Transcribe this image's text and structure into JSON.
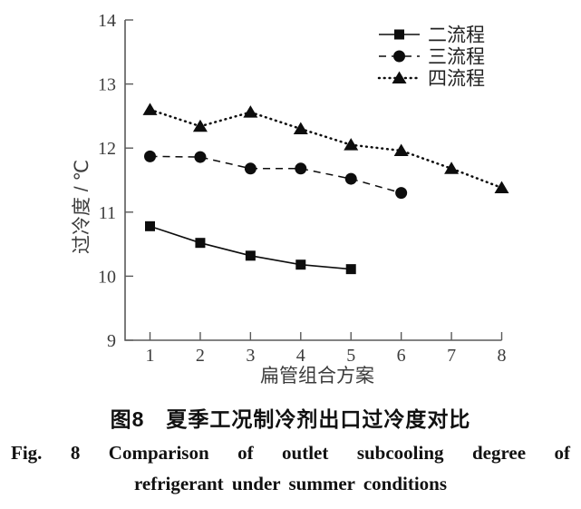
{
  "figure": {
    "caption_zh": "图8　夏季工况制冷剂出口过冷度对比",
    "caption_en_line1": "Fig. 8 Comparison of outlet subcooling degree of",
    "caption_en_line2": "refrigerant under summer conditions"
  },
  "chart_data": {
    "type": "line",
    "title": "",
    "xlabel": "扁管组合方案",
    "ylabel": "过冷度 / ℃",
    "xlim": [
      0.5,
      8.2
    ],
    "ylim": [
      9,
      14
    ],
    "x_ticks": [
      1,
      2,
      3,
      4,
      5,
      6,
      7,
      8
    ],
    "y_ticks": [
      9,
      10,
      11,
      12,
      13,
      14
    ],
    "grid": "off",
    "legend_position": "top-right-inside",
    "series": [
      {
        "name": "二流程",
        "marker": "square",
        "line": "solid",
        "x": [
          1,
          2,
          3,
          4,
          5
        ],
        "values": [
          10.78,
          10.52,
          10.32,
          10.18,
          10.11
        ]
      },
      {
        "name": "三流程",
        "marker": "circle",
        "line": "dashed",
        "x": [
          1,
          2,
          3,
          4,
          5,
          6
        ],
        "values": [
          11.87,
          11.86,
          11.68,
          11.68,
          11.52,
          11.3
        ]
      },
      {
        "name": "四流程",
        "marker": "triangle",
        "line": "dotted",
        "x": [
          1,
          2,
          3,
          4,
          5,
          6,
          7,
          8
        ],
        "values": [
          12.6,
          12.34,
          12.56,
          12.3,
          12.05,
          11.96,
          11.68,
          11.38
        ]
      }
    ],
    "colors": {
      "data": "#0d0d0d",
      "axis": "#5a5a5a",
      "tick_text": "#3c3c3c"
    }
  }
}
